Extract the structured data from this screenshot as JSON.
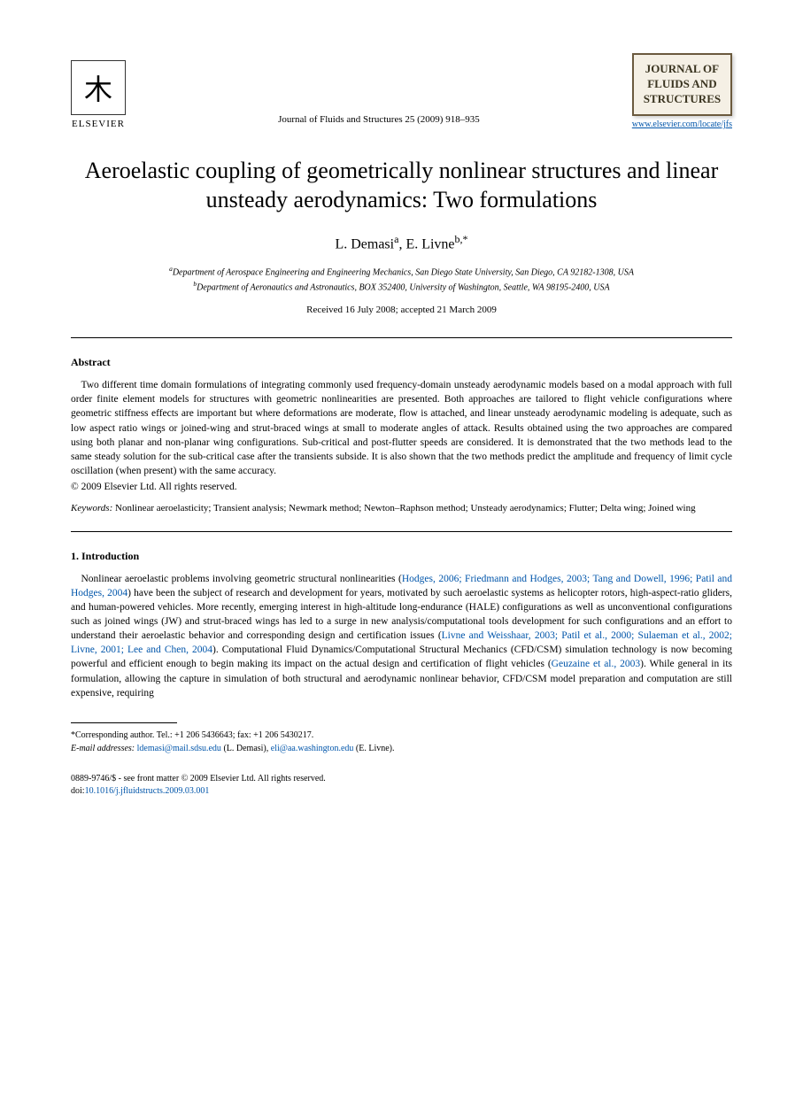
{
  "publisher": {
    "name": "ELSEVIER"
  },
  "journal": {
    "reference": "Journal of Fluids and Structures 25 (2009) 918–935",
    "box_line1": "JOURNAL OF",
    "box_line2": "FLUIDS AND",
    "box_line3": "STRUCTURES",
    "url": "www.elsevier.com/locate/jfs"
  },
  "title": "Aeroelastic coupling of geometrically nonlinear structures and linear unsteady aerodynamics: Two formulations",
  "authors": {
    "a1_name": "L. Demasi",
    "a1_sup": "a",
    "a2_name": "E. Livne",
    "a2_sup": "b,",
    "corr_mark": "*"
  },
  "affiliations": {
    "a": "Department of Aerospace Engineering and Engineering Mechanics, San Diego State University, San Diego, CA 92182-1308, USA",
    "b": "Department of Aeronautics and Astronautics, BOX 352400, University of Washington, Seattle, WA 98195-2400, USA"
  },
  "dates": "Received 16 July 2008; accepted 21 March 2009",
  "abstract": {
    "heading": "Abstract",
    "text": "Two different time domain formulations of integrating commonly used frequency-domain unsteady aerodynamic models based on a modal approach with full order finite element models for structures with geometric nonlinearities are presented. Both approaches are tailored to flight vehicle configurations where geometric stiffness effects are important but where deformations are moderate, flow is attached, and linear unsteady aerodynamic modeling is adequate, such as low aspect ratio wings or joined-wing and strut-braced wings at small to moderate angles of attack. Results obtained using the two approaches are compared using both planar and non-planar wing configurations. Sub-critical and post-flutter speeds are considered. It is demonstrated that the two methods lead to the same steady solution for the sub-critical case after the transients subside. It is also shown that the two methods predict the amplitude and frequency of limit cycle oscillation (when present) with the same accuracy.",
    "copyright": "© 2009 Elsevier Ltd. All rights reserved."
  },
  "keywords": {
    "label": "Keywords:",
    "text": "Nonlinear aeroelasticity; Transient analysis; Newmark method; Newton–Raphson method; Unsteady aerodynamics; Flutter; Delta wing; Joined wing"
  },
  "introduction": {
    "heading": "1. Introduction",
    "p1a": "Nonlinear aeroelastic problems involving geometric structural nonlinearities (",
    "p1_ref1": "Hodges, 2006; Friedmann and Hodges, 2003; Tang and Dowell, 1996; Patil and Hodges, 2004",
    "p1b": ") have been the subject of research and development for years, motivated by such aeroelastic systems as helicopter rotors, high-aspect-ratio gliders, and human-powered vehicles. More recently, emerging interest in high-altitude long-endurance (HALE) configurations as well as unconventional configurations such as joined wings (JW) and strut-braced wings has led to a surge in new analysis/computational tools development for such configurations and an effort to understand their aeroelastic behavior and corresponding design and certification issues (",
    "p1_ref2": "Livne and Weisshaar, 2003; Patil et al., 2000; Sulaeman et al., 2002; Livne, 2001; Lee and Chen, 2004",
    "p1c": "). Computational Fluid Dynamics/Computational Structural Mechanics (CFD/CSM) simulation technology is now becoming powerful and efficient enough to begin making its impact on the actual design and certification of flight vehicles (",
    "p1_ref3": "Geuzaine et al., 2003",
    "p1d": "). While general in its formulation, allowing the capture in simulation of both structural and aerodynamic nonlinear behavior, CFD/CSM model preparation and computation are still expensive, requiring"
  },
  "footnote": {
    "corr": "*Corresponding author. Tel.: +1 206 5436643; fax: +1 206 5430217.",
    "email_label": "E-mail addresses:",
    "email1": "ldemasi@mail.sdsu.edu",
    "email1_name": "(L. Demasi),",
    "email2": "eli@aa.washington.edu",
    "email2_name": "(E. Livne)."
  },
  "footer": {
    "line1": "0889-9746/$ - see front matter © 2009 Elsevier Ltd. All rights reserved.",
    "doi_label": "doi:",
    "doi": "10.1016/j.jfluidstructs.2009.03.001"
  }
}
